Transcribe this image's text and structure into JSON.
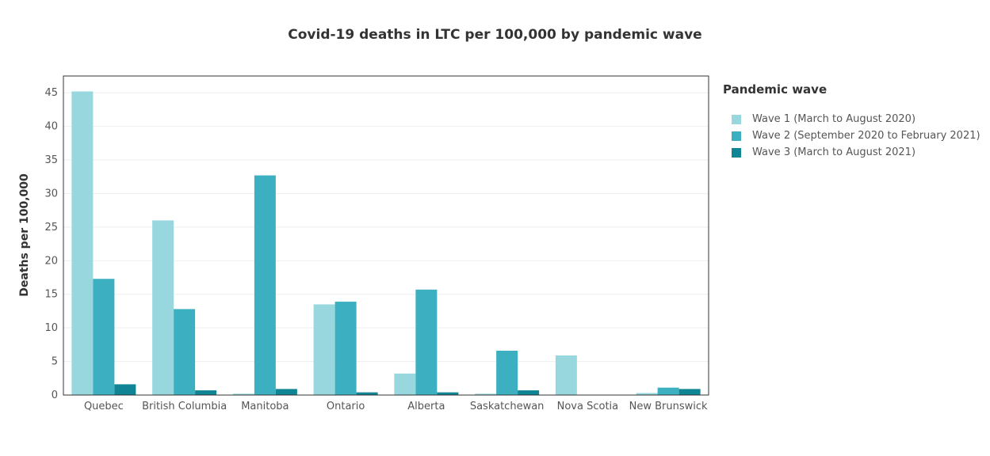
{
  "chart_data": {
    "type": "bar",
    "title": "Covid-19 deaths in LTC per 100,000 by pandemic wave",
    "xlabel": "",
    "ylabel": "Deaths per 100,000",
    "ylim": [
      0,
      47.5
    ],
    "yticks": [
      0,
      5,
      10,
      15,
      20,
      25,
      30,
      35,
      40,
      45
    ],
    "categories": [
      "Quebec",
      "British Columbia",
      "Manitoba",
      "Ontario",
      "Alberta",
      "Saskatchewan",
      "Nova Scotia",
      "New Brunswick"
    ],
    "series": [
      {
        "name": "Wave 1 (March to August 2020)",
        "color": "#97d7dd",
        "values": [
          45.2,
          26.0,
          0.2,
          13.5,
          3.2,
          0.2,
          5.9,
          0.3
        ]
      },
      {
        "name": "Wave 2 (September 2020 to February 2021)",
        "color": "#3cb0c0",
        "values": [
          17.3,
          12.8,
          32.7,
          13.9,
          15.7,
          6.6,
          0,
          1.1
        ]
      },
      {
        "name": "Wave 3 (March to August 2021)",
        "color": "#0e8494",
        "values": [
          1.6,
          0.7,
          0.9,
          0.4,
          0.4,
          0.7,
          0,
          0.9
        ]
      }
    ],
    "grid": true,
    "legend": {
      "title": "Pandemic wave",
      "position": "right"
    }
  }
}
